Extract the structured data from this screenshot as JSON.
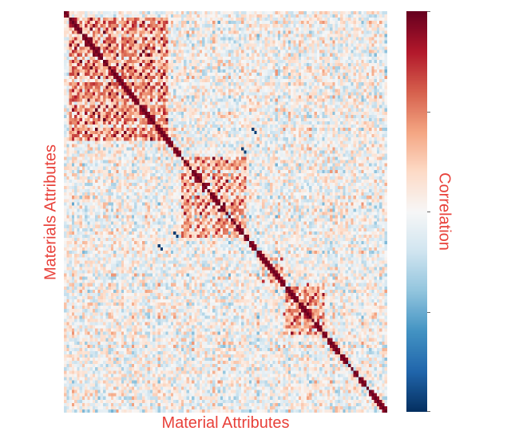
{
  "chart_data": {
    "type": "heatmap",
    "xlabel": "Material Attributes",
    "ylabel": "Materials Attributes",
    "colorbar_label": "Correlation",
    "value_range": [
      -1,
      1
    ],
    "matrix_size": 124,
    "colormap": [
      "#053061",
      "#2166ac",
      "#4393c3",
      "#92c5de",
      "#d1e5f0",
      "#f7f7f7",
      "#fddbc7",
      "#f4a582",
      "#d6604d",
      "#b2182b",
      "#67001f"
    ],
    "colorbar_ticks": [
      -1,
      -0.5,
      0,
      0.5,
      1
    ],
    "blocks": [
      {
        "range": [
          2,
          40
        ],
        "corr": 0.35
      },
      {
        "range": [
          45,
          70
        ],
        "corr": 0.25
      },
      {
        "range": [
          76,
          84
        ],
        "corr": 0.2
      },
      {
        "range": [
          84,
          100
        ],
        "corr": 0.3
      }
    ]
  }
}
